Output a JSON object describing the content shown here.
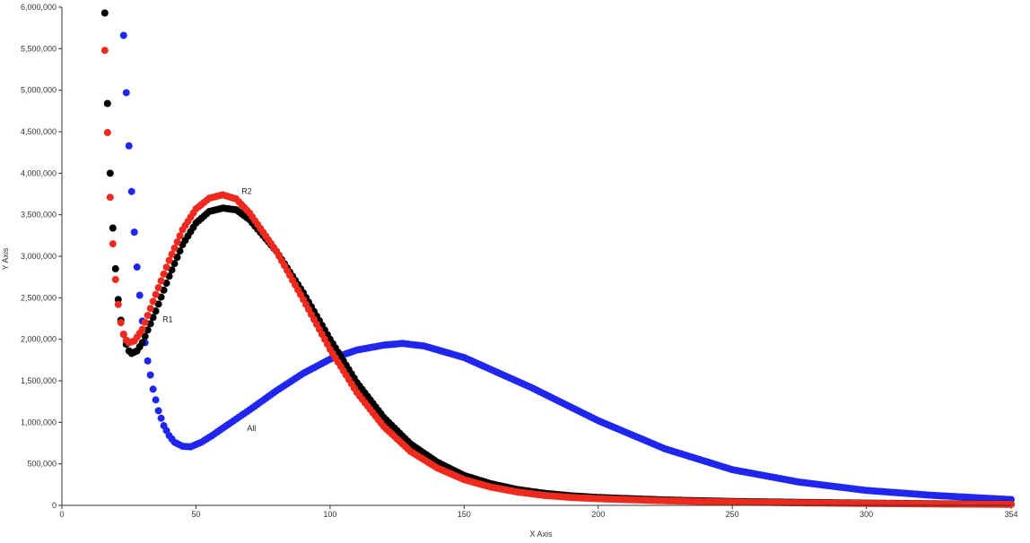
{
  "chart_data": {
    "type": "scatter",
    "title": "",
    "xlabel": "X Axis",
    "ylabel": "Y Axis",
    "xlim": [
      0,
      354
    ],
    "ylim": [
      0,
      6000000
    ],
    "x_ticks": [
      0,
      50,
      100,
      150,
      200,
      250,
      300,
      354
    ],
    "x_tick_labels": [
      "0",
      "50",
      "100",
      "150",
      "200",
      "250",
      "300",
      "354"
    ],
    "y_ticks": [
      0,
      500000,
      1000000,
      1500000,
      2000000,
      2500000,
      3000000,
      3500000,
      4000000,
      4500000,
      5000000,
      5500000,
      6000000
    ],
    "y_tick_labels": [
      "0",
      "500,000",
      "1,000,000",
      "1,500,000",
      "2,000,000",
      "2,500,000",
      "3,000,000",
      "3,500,000",
      "4,000,000",
      "4,500,000",
      "5,000,000",
      "5,500,000",
      "6,000,000"
    ],
    "grid": false,
    "legend": "none",
    "series": [
      {
        "name": "R1",
        "color": "#000000",
        "x_range": [
          16,
          354
        ],
        "x_step": 1,
        "anchors": [
          [
            16,
            5930000
          ],
          [
            17,
            4840000
          ],
          [
            18,
            4000000
          ],
          [
            19,
            3340000
          ],
          [
            20,
            2850000
          ],
          [
            21,
            2480000
          ],
          [
            22,
            2230000
          ],
          [
            23,
            2060000
          ],
          [
            24,
            1940000
          ],
          [
            25,
            1860000
          ],
          [
            26,
            1830000
          ],
          [
            28,
            1860000
          ],
          [
            30,
            1960000
          ],
          [
            35,
            2340000
          ],
          [
            40,
            2760000
          ],
          [
            45,
            3140000
          ],
          [
            50,
            3400000
          ],
          [
            55,
            3540000
          ],
          [
            60,
            3580000
          ],
          [
            65,
            3560000
          ],
          [
            70,
            3440000
          ],
          [
            80,
            3060000
          ],
          [
            90,
            2560000
          ],
          [
            100,
            2000000
          ],
          [
            110,
            1480000
          ],
          [
            120,
            1060000
          ],
          [
            130,
            740000
          ],
          [
            140,
            520000
          ],
          [
            150,
            360000
          ],
          [
            160,
            260000
          ],
          [
            170,
            190000
          ],
          [
            180,
            145000
          ],
          [
            190,
            115000
          ],
          [
            200,
            95000
          ],
          [
            225,
            65000
          ],
          [
            250,
            47000
          ],
          [
            275,
            36000
          ],
          [
            300,
            27000
          ],
          [
            325,
            20000
          ],
          [
            354,
            14000
          ]
        ]
      },
      {
        "name": "R2",
        "color": "#ee2a1e",
        "x_range": [
          16,
          354
        ],
        "x_step": 1,
        "anchors": [
          [
            16,
            5480000
          ],
          [
            17,
            4490000
          ],
          [
            18,
            3710000
          ],
          [
            19,
            3150000
          ],
          [
            20,
            2720000
          ],
          [
            21,
            2420000
          ],
          [
            22,
            2200000
          ],
          [
            23,
            2060000
          ],
          [
            24,
            1990000
          ],
          [
            25,
            1960000
          ],
          [
            27,
            1980000
          ],
          [
            30,
            2120000
          ],
          [
            35,
            2540000
          ],
          [
            40,
            2950000
          ],
          [
            45,
            3320000
          ],
          [
            50,
            3570000
          ],
          [
            55,
            3700000
          ],
          [
            60,
            3740000
          ],
          [
            65,
            3690000
          ],
          [
            70,
            3520000
          ],
          [
            80,
            3060000
          ],
          [
            90,
            2480000
          ],
          [
            100,
            1880000
          ],
          [
            110,
            1360000
          ],
          [
            120,
            950000
          ],
          [
            130,
            650000
          ],
          [
            140,
            450000
          ],
          [
            150,
            310000
          ],
          [
            160,
            220000
          ],
          [
            170,
            160000
          ],
          [
            180,
            120000
          ],
          [
            190,
            95000
          ],
          [
            200,
            80000
          ],
          [
            225,
            55000
          ],
          [
            250,
            40000
          ],
          [
            275,
            30000
          ],
          [
            300,
            23000
          ],
          [
            325,
            17000
          ],
          [
            354,
            12000
          ]
        ]
      },
      {
        "name": "All",
        "color": "#2026ee",
        "x_range": [
          23,
          354
        ],
        "x_step": 1,
        "anchors": [
          [
            23,
            5660000
          ],
          [
            24,
            4970000
          ],
          [
            25,
            4330000
          ],
          [
            26,
            3780000
          ],
          [
            27,
            3290000
          ],
          [
            28,
            2870000
          ],
          [
            29,
            2530000
          ],
          [
            30,
            2220000
          ],
          [
            31,
            1960000
          ],
          [
            32,
            1740000
          ],
          [
            34,
            1400000
          ],
          [
            36,
            1140000
          ],
          [
            38,
            960000
          ],
          [
            40,
            840000
          ],
          [
            42,
            760000
          ],
          [
            45,
            712000
          ],
          [
            48,
            705000
          ],
          [
            52,
            760000
          ],
          [
            56,
            840000
          ],
          [
            60,
            930000
          ],
          [
            70,
            1150000
          ],
          [
            80,
            1380000
          ],
          [
            90,
            1590000
          ],
          [
            100,
            1760000
          ],
          [
            110,
            1870000
          ],
          [
            120,
            1930000
          ],
          [
            127,
            1950000
          ],
          [
            135,
            1920000
          ],
          [
            150,
            1780000
          ],
          [
            175,
            1420000
          ],
          [
            200,
            1020000
          ],
          [
            225,
            680000
          ],
          [
            250,
            430000
          ],
          [
            275,
            280000
          ],
          [
            300,
            180000
          ],
          [
            325,
            120000
          ],
          [
            354,
            70000
          ]
        ]
      }
    ],
    "annotations": [
      {
        "text": "R2",
        "x": 67,
        "y": 3780000
      },
      {
        "text": "R1",
        "x": 37.5,
        "y": 2240000
      },
      {
        "text": "All",
        "x": 69,
        "y": 930000
      }
    ]
  }
}
